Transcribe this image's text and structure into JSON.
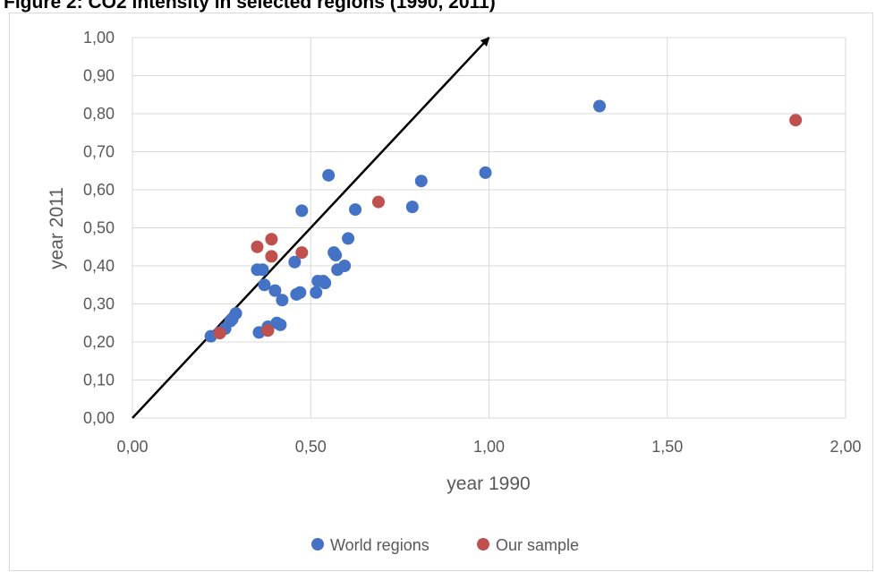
{
  "figure": {
    "title": "Figure 2: CO2 intensity  in selected regions (1990, 2011)"
  },
  "chart_data": {
    "type": "scatter",
    "title": "",
    "xlabel": "year 1990",
    "ylabel": "year 2011",
    "xlim": [
      0,
      2
    ],
    "ylim": [
      0,
      1
    ],
    "x_ticks": [
      "0,00",
      "0,50",
      "1,00",
      "1,50",
      "2,00"
    ],
    "y_ticks": [
      "0,00",
      "0,10",
      "0,20",
      "0,30",
      "0,40",
      "0,50",
      "0,60",
      "0,70",
      "0,80",
      "0,90",
      "1,00"
    ],
    "x_tick_values": [
      0,
      0.5,
      1,
      1.5,
      2
    ],
    "y_tick_values": [
      0,
      0.1,
      0.2,
      0.3,
      0.4,
      0.5,
      0.6,
      0.7,
      0.8,
      0.9,
      1
    ],
    "grid": true,
    "legend_position": "bottom",
    "reference_arrow": {
      "from": [
        0,
        0
      ],
      "to": [
        1.0,
        1.0
      ]
    },
    "series": [
      {
        "name": "World regions",
        "color": "#4472c4",
        "points": [
          [
            0.22,
            0.215
          ],
          [
            0.245,
            0.225
          ],
          [
            0.26,
            0.235
          ],
          [
            0.275,
            0.255
          ],
          [
            0.28,
            0.26
          ],
          [
            0.29,
            0.275
          ],
          [
            0.35,
            0.39
          ],
          [
            0.355,
            0.225
          ],
          [
            0.365,
            0.39
          ],
          [
            0.37,
            0.35
          ],
          [
            0.38,
            0.24
          ],
          [
            0.4,
            0.335
          ],
          [
            0.405,
            0.25
          ],
          [
            0.415,
            0.245
          ],
          [
            0.42,
            0.31
          ],
          [
            0.455,
            0.41
          ],
          [
            0.46,
            0.325
          ],
          [
            0.47,
            0.33
          ],
          [
            0.475,
            0.545
          ],
          [
            0.515,
            0.33
          ],
          [
            0.52,
            0.36
          ],
          [
            0.535,
            0.36
          ],
          [
            0.54,
            0.355
          ],
          [
            0.55,
            0.638
          ],
          [
            0.565,
            0.435
          ],
          [
            0.57,
            0.428
          ],
          [
            0.575,
            0.39
          ],
          [
            0.595,
            0.4
          ],
          [
            0.605,
            0.472
          ],
          [
            0.625,
            0.548
          ],
          [
            0.785,
            0.555
          ],
          [
            0.81,
            0.623
          ],
          [
            0.99,
            0.645
          ],
          [
            1.31,
            0.82
          ]
        ]
      },
      {
        "name": "Our sample",
        "color": "#c0504d",
        "points": [
          [
            0.245,
            0.223
          ],
          [
            0.35,
            0.45
          ],
          [
            0.38,
            0.23
          ],
          [
            0.39,
            0.47
          ],
          [
            0.39,
            0.425
          ],
          [
            0.475,
            0.435
          ],
          [
            0.69,
            0.568
          ],
          [
            1.86,
            0.783
          ]
        ]
      }
    ]
  }
}
